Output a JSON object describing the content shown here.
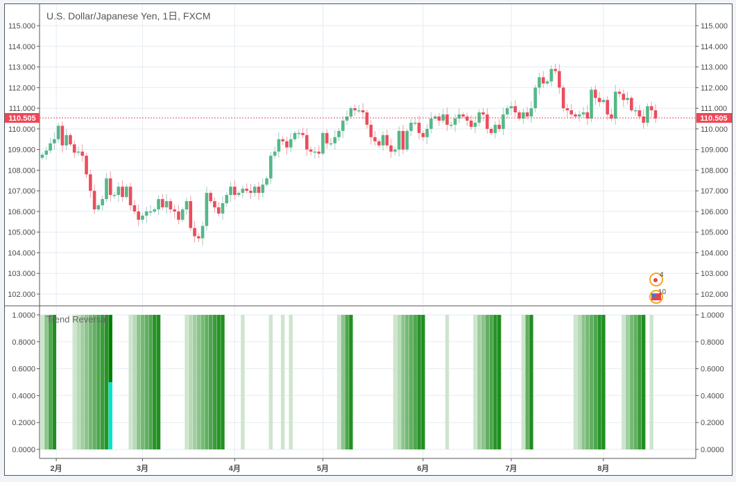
{
  "chart_data": [
    {
      "type": "candlestick",
      "title": "U.S. Dollar/Japanese Yen, 1日, FXCM",
      "ylim": [
        101.6,
        115.4
      ],
      "yticks": [
        "115.000",
        "114.000",
        "113.000",
        "112.000",
        "111.000",
        "110.000",
        "109.000",
        "108.000",
        "107.000",
        "106.000",
        "105.000",
        "104.000",
        "103.000",
        "102.000"
      ],
      "ytick_values": [
        115,
        114,
        113,
        112,
        111,
        110,
        109,
        108,
        107,
        106,
        105,
        104,
        103,
        102
      ],
      "x_month_labels": [
        "2月",
        "3月",
        "4月",
        "5月",
        "6月",
        "7月",
        "8月"
      ],
      "x_month_candle_index": [
        4,
        25,
        48,
        70,
        95,
        117,
        140
      ],
      "first_open": 108.6,
      "closes": [
        108.75,
        108.95,
        109.3,
        109.5,
        110.15,
        109.2,
        109.7,
        109.25,
        108.85,
        108.9,
        108.7,
        107.8,
        107.0,
        106.1,
        106.3,
        106.6,
        107.6,
        106.8,
        106.8,
        107.2,
        106.7,
        107.2,
        106.3,
        106.0,
        105.6,
        105.8,
        106.0,
        106.0,
        106.1,
        106.6,
        106.2,
        106.5,
        106.1,
        106.0,
        105.6,
        106.1,
        106.5,
        105.2,
        104.8,
        104.7,
        105.3,
        106.9,
        106.5,
        106.2,
        105.9,
        106.4,
        106.8,
        107.2,
        106.8,
        106.9,
        107.1,
        107.0,
        106.9,
        107.2,
        106.9,
        107.3,
        107.6,
        108.7,
        108.9,
        109.5,
        109.4,
        109.1,
        109.5,
        109.8,
        109.8,
        109.7,
        109.0,
        108.9,
        108.9,
        108.8,
        109.8,
        109.3,
        109.3,
        109.6,
        109.9,
        110.4,
        110.6,
        111.0,
        110.9,
        110.9,
        110.8,
        110.2,
        109.6,
        109.4,
        109.2,
        109.7,
        109.2,
        108.9,
        109.0,
        109.9,
        109.0,
        109.9,
        110.3,
        110.3,
        109.8,
        109.6,
        110.0,
        110.5,
        110.6,
        110.4,
        110.7,
        110.2,
        110.2,
        110.5,
        110.7,
        110.6,
        110.4,
        110.1,
        110.3,
        110.8,
        110.7,
        110.0,
        109.8,
        110.2,
        110.0,
        110.7,
        111.0,
        111.1,
        110.8,
        110.5,
        110.8,
        110.6,
        111.0,
        112.0,
        112.5,
        112.2,
        112.3,
        112.9,
        112.8,
        112.0,
        111.0,
        110.9,
        110.7,
        110.6,
        110.7,
        110.8,
        110.5,
        111.9,
        111.5,
        111.3,
        111.4,
        110.7,
        110.5,
        111.8,
        111.7,
        111.4,
        111.5,
        110.9,
        110.9,
        110.6,
        110.3,
        111.1,
        110.9,
        110.505
      ],
      "last_price": "110.505",
      "colors": {
        "up": "#53b987",
        "down": "#eb4d5c",
        "up_wick": "#9fc9c6",
        "down_wick": "#f29aa4",
        "last_price": "#f04656"
      },
      "events": [
        {
          "label": "4",
          "kind": "japan"
        },
        {
          "label": "10",
          "kind": "usa"
        }
      ]
    },
    {
      "type": "bar",
      "title": "Trend Reversal",
      "ylim": [
        0,
        1
      ],
      "yticks": [
        "1.0000",
        "0.8000",
        "0.6000",
        "0.4000",
        "0.2000",
        "0.0000"
      ],
      "ytick_values": [
        1,
        0.8,
        0.6,
        0.4,
        0.2,
        0
      ],
      "groups": [
        {
          "start": 0,
          "count": 4
        },
        {
          "start": 8,
          "count": 10
        },
        {
          "start": 22,
          "count": 8
        },
        {
          "start": 36,
          "count": 10
        },
        {
          "start": 50,
          "count": 1
        },
        {
          "start": 57,
          "count": 1
        },
        {
          "start": 60,
          "count": 1
        },
        {
          "start": 62,
          "count": 1
        },
        {
          "start": 74,
          "count": 4
        },
        {
          "start": 88,
          "count": 8
        },
        {
          "start": 101,
          "count": 1
        },
        {
          "start": 108,
          "count": 7
        },
        {
          "start": 120,
          "count": 3
        },
        {
          "start": 133,
          "count": 8
        },
        {
          "start": 145,
          "count": 6
        },
        {
          "start": 152,
          "count": 1
        }
      ],
      "bar_value": 1.0,
      "split_bar": {
        "index": 17,
        "secondary_value": 0.5,
        "secondary_color": "#00e5c8",
        "primary_color": "#008000"
      },
      "color": "#1f8f1f"
    }
  ]
}
